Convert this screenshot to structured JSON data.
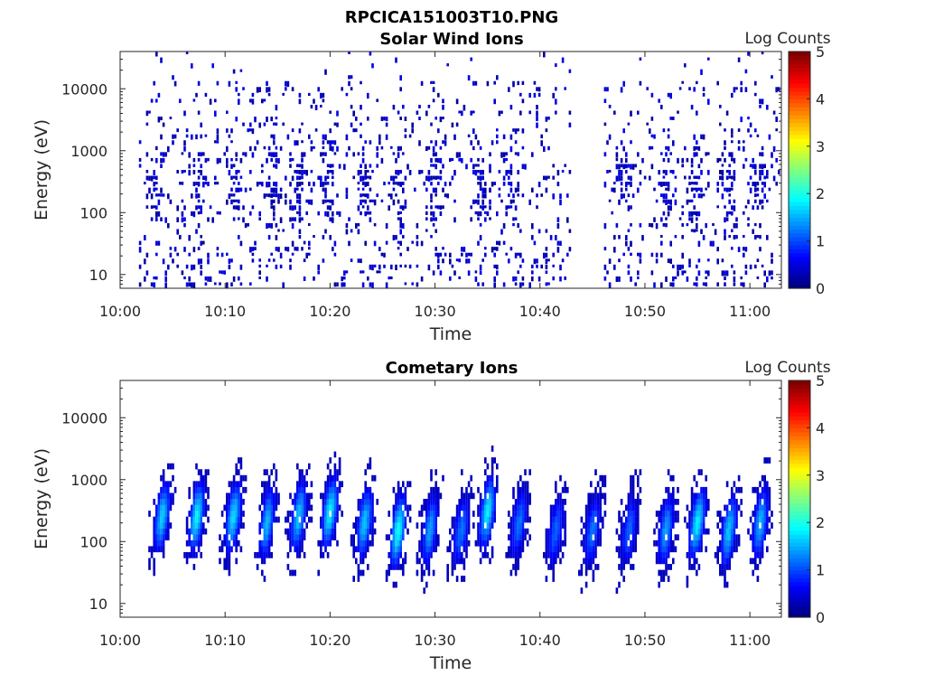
{
  "figure": {
    "title": "RPCICA151003T10.PNG"
  },
  "chart_data": [
    {
      "type": "heatmap",
      "title": "Solar Wind Ions",
      "xlabel": "Time",
      "ylabel": "Energy (eV)",
      "x_ticks": [
        "10:00",
        "10:10",
        "10:20",
        "10:30",
        "10:40",
        "10:50",
        "11:00"
      ],
      "y_ticks": [
        "10",
        "100",
        "1000",
        "10000"
      ],
      "y_scale": "log",
      "xlim": [
        "10:00",
        "11:03"
      ],
      "ylim": [
        6,
        40000
      ],
      "colorbar": {
        "label": "Log Counts",
        "ticks": [
          "0",
          "1",
          "2",
          "3",
          "4",
          "5"
        ],
        "range": [
          0,
          5
        ],
        "colormap": "jet"
      },
      "data_gap": [
        "10:43",
        "10:46"
      ],
      "bursts": [
        {
          "time": "10:03.5",
          "peak_energy_eV": 300
        },
        {
          "time": "10:07.5",
          "peak_energy_eV": 300
        },
        {
          "time": "10:11",
          "peak_energy_eV": 300
        },
        {
          "time": "10:14.5",
          "peak_energy_eV": 300
        },
        {
          "time": "10:17",
          "peak_energy_eV": 200
        },
        {
          "time": "10:20",
          "peak_energy_eV": 300
        },
        {
          "time": "10:23.5",
          "peak_energy_eV": 300
        },
        {
          "time": "10:26.5",
          "peak_energy_eV": 200
        },
        {
          "time": "10:30",
          "peak_energy_eV": 300
        },
        {
          "time": "10:34.5",
          "peak_energy_eV": 300
        },
        {
          "time": "10:37",
          "peak_energy_eV": 300
        },
        {
          "time": "10:48",
          "peak_energy_eV": 300
        },
        {
          "time": "10:52",
          "peak_energy_eV": 300
        },
        {
          "time": "10:55",
          "peak_energy_eV": 200
        },
        {
          "time": "10:58",
          "peak_energy_eV": 300
        },
        {
          "time": "11:01",
          "peak_energy_eV": 300
        }
      ],
      "count_level_range": [
        0,
        0.6
      ]
    },
    {
      "type": "heatmap",
      "title": "Cometary Ions",
      "xlabel": "Time",
      "ylabel": "Energy (eV)",
      "x_ticks": [
        "10:00",
        "10:10",
        "10:20",
        "10:30",
        "10:40",
        "10:50",
        "11:00"
      ],
      "y_ticks": [
        "10",
        "100",
        "1000",
        "10000"
      ],
      "y_scale": "log",
      "xlim": [
        "10:00",
        "11:03"
      ],
      "ylim": [
        6,
        40000
      ],
      "colorbar": {
        "label": "Log Counts",
        "ticks": [
          "0",
          "1",
          "2",
          "3",
          "4",
          "5"
        ],
        "range": [
          0,
          5
        ],
        "colormap": "jet"
      },
      "bursts": [
        {
          "time": "10:04",
          "peak_energy_eV": 250,
          "peak_log_counts": 1.6
        },
        {
          "time": "10:07.3",
          "peak_energy_eV": 250,
          "peak_log_counts": 1.8
        },
        {
          "time": "10:10.8",
          "peak_energy_eV": 250,
          "peak_log_counts": 1.7
        },
        {
          "time": "10:14",
          "peak_energy_eV": 200,
          "peak_log_counts": 1.5
        },
        {
          "time": "10:17",
          "peak_energy_eV": 250,
          "peak_log_counts": 1.6
        },
        {
          "time": "10:20",
          "peak_energy_eV": 300,
          "peak_log_counts": 1.8
        },
        {
          "time": "10:23.3",
          "peak_energy_eV": 200,
          "peak_log_counts": 1.6
        },
        {
          "time": "10:26.5",
          "peak_energy_eV": 150,
          "peak_log_counts": 1.9
        },
        {
          "time": "10:29.5",
          "peak_energy_eV": 150,
          "peak_log_counts": 1.4
        },
        {
          "time": "10:32.5",
          "peak_energy_eV": 150,
          "peak_log_counts": 1.2
        },
        {
          "time": "10:35",
          "peak_energy_eV": 300,
          "peak_log_counts": 1.8
        },
        {
          "time": "10:38",
          "peak_energy_eV": 200,
          "peak_log_counts": 1.2
        },
        {
          "time": "10:41.5",
          "peak_energy_eV": 150,
          "peak_log_counts": 1.1
        },
        {
          "time": "10:45",
          "peak_energy_eV": 150,
          "peak_log_counts": 1.2
        },
        {
          "time": "10:48.5",
          "peak_energy_eV": 150,
          "peak_log_counts": 1.1
        },
        {
          "time": "10:52",
          "peak_energy_eV": 150,
          "peak_log_counts": 1.4
        },
        {
          "time": "10:55",
          "peak_energy_eV": 200,
          "peak_log_counts": 1.8
        },
        {
          "time": "10:58",
          "peak_energy_eV": 150,
          "peak_log_counts": 1.6
        },
        {
          "time": "11:01",
          "peak_energy_eV": 200,
          "peak_log_counts": 1.5
        }
      ]
    }
  ]
}
